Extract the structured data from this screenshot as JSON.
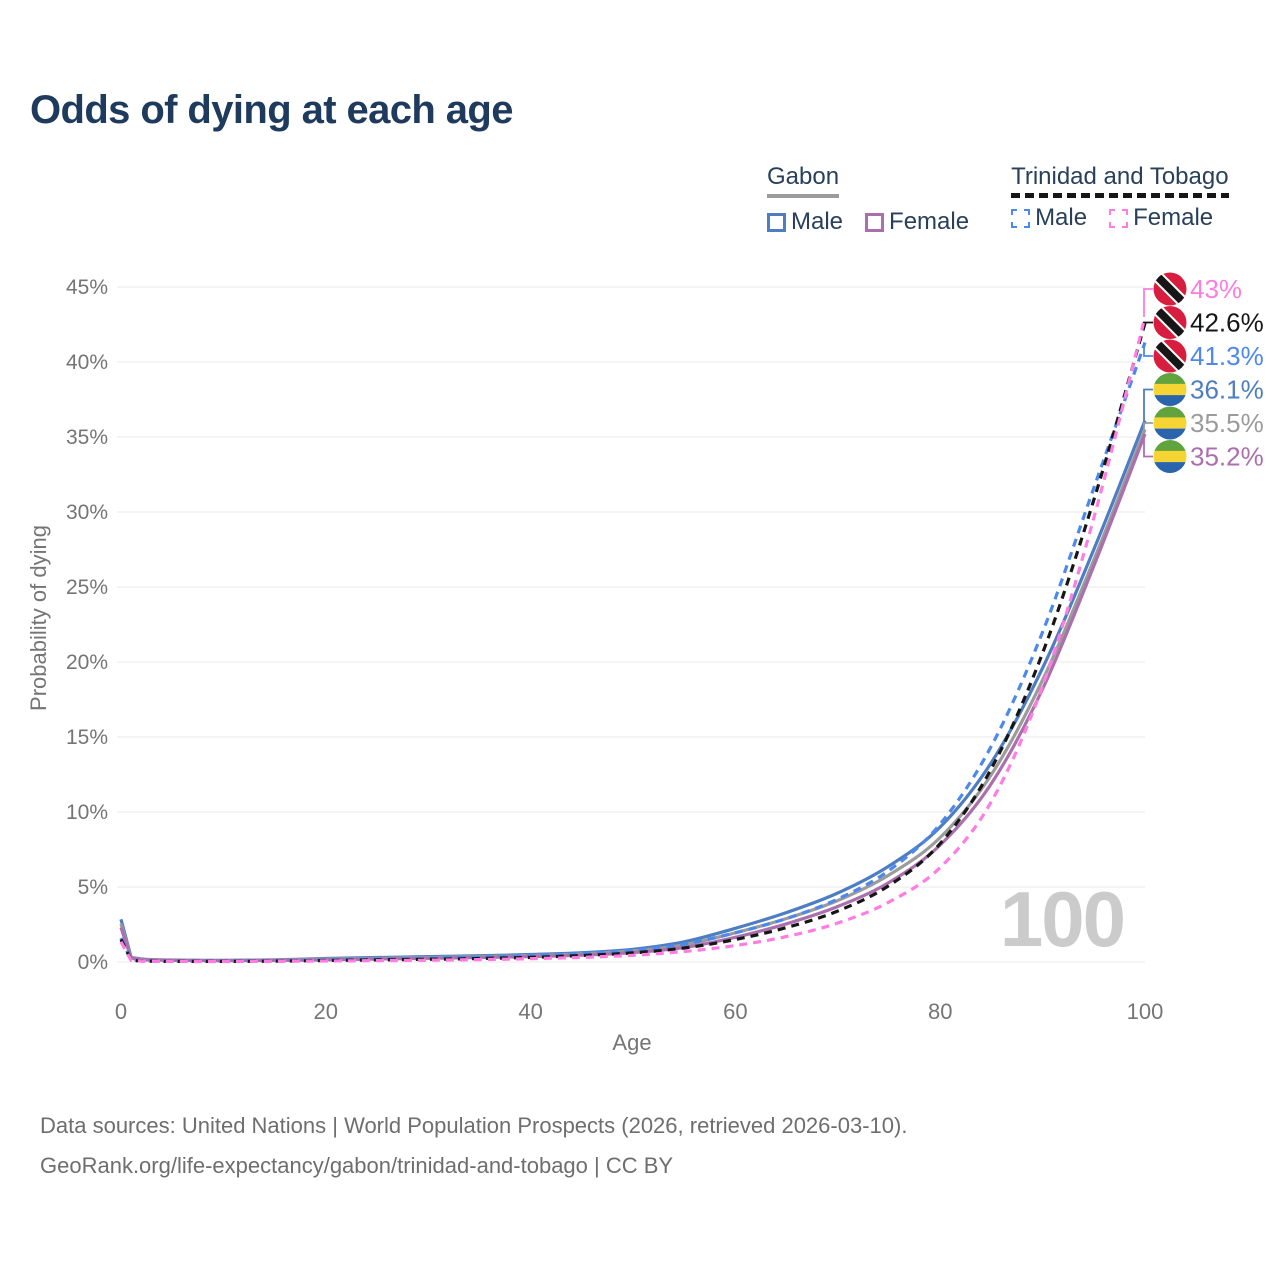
{
  "title": "Odds of dying at each age",
  "watermark": "100",
  "legend": {
    "gabon": {
      "label": "Gabon",
      "male": "Male",
      "female": "Female"
    },
    "trinidad_and_tobago": {
      "label": "Trinidad and Tobago",
      "male": "Male",
      "female": "Female"
    }
  },
  "footer": {
    "line1": "Data sources: United Nations | World Population Prospects (2026, retrieved 2026-03-10).",
    "line2": "GeoRank.org/life-expectancy/gabon/trinidad-and-tobago | CC BY"
  },
  "colors": {
    "title": "#1e3a5c",
    "legend_text": "#29405a",
    "axis_text": "#757575",
    "grid": "#e9e9e9",
    "footer_text": "#6e6e6e",
    "watermark": "#cbcbcb"
  },
  "chart_data": {
    "type": "line",
    "title": "Odds of dying at each age",
    "xlabel": "Age",
    "ylabel": "Probability of dying",
    "xlim": [
      0,
      100
    ],
    "ylim": [
      0,
      45
    ],
    "x_ticks": [
      0,
      20,
      40,
      60,
      80,
      100
    ],
    "y_ticks": [
      0,
      5,
      10,
      15,
      20,
      25,
      30,
      35,
      40,
      45
    ],
    "y_tick_format": "percent",
    "grid": "horizontal",
    "legend_position": "top-right",
    "x": [
      0,
      1,
      2,
      3,
      4,
      5,
      10,
      15,
      20,
      25,
      30,
      35,
      40,
      45,
      50,
      55,
      60,
      65,
      70,
      75,
      80,
      85,
      90,
      95,
      100
    ],
    "series": [
      {
        "name": "Gabon Male",
        "country": "gabon",
        "sex": "male",
        "line": "solid",
        "color": "#4e7dc1",
        "end_label": "36.1%",
        "values": [
          2.85,
          0.3,
          0.2,
          0.16,
          0.14,
          0.13,
          0.11,
          0.15,
          0.23,
          0.3,
          0.36,
          0.42,
          0.5,
          0.62,
          0.85,
          1.35,
          2.25,
          3.3,
          4.6,
          6.4,
          9.0,
          13.3,
          19.6,
          27.5,
          36.1
        ]
      },
      {
        "name": "Gabon Both sexes",
        "country": "gabon",
        "sex": "both",
        "line": "solid",
        "color": "#9b9b9b",
        "end_label": "35.5%",
        "values": [
          2.55,
          0.27,
          0.18,
          0.15,
          0.13,
          0.12,
          0.1,
          0.13,
          0.19,
          0.25,
          0.3,
          0.36,
          0.43,
          0.54,
          0.74,
          1.15,
          1.95,
          2.9,
          4.1,
          5.8,
          8.3,
          12.5,
          18.8,
          26.8,
          35.5
        ]
      },
      {
        "name": "Gabon Female",
        "country": "gabon",
        "sex": "female",
        "line": "solid",
        "color": "#ab6fad",
        "end_label": "35.2%",
        "values": [
          2.3,
          0.24,
          0.16,
          0.13,
          0.12,
          0.11,
          0.09,
          0.11,
          0.15,
          0.2,
          0.25,
          0.3,
          0.37,
          0.46,
          0.63,
          0.97,
          1.65,
          2.55,
          3.7,
          5.3,
          7.8,
          11.9,
          18.2,
          26.4,
          35.2
        ]
      },
      {
        "name": "Trinidad and Tobago Male",
        "country": "trinidad-and-tobago",
        "sex": "male",
        "line": "dashed",
        "color": "#4d88ec",
        "end_label": "41.3%",
        "values": [
          1.6,
          0.12,
          0.08,
          0.06,
          0.05,
          0.05,
          0.05,
          0.08,
          0.14,
          0.19,
          0.25,
          0.32,
          0.42,
          0.57,
          0.8,
          1.2,
          1.95,
          2.9,
          4.2,
          6.1,
          9.2,
          14.4,
          22.0,
          31.6,
          41.3
        ]
      },
      {
        "name": "Trinidad and Tobago Both sexes",
        "country": "trinidad-and-tobago",
        "sex": "both",
        "line": "dashed",
        "color": "#161616",
        "end_label": "42.6%",
        "values": [
          1.5,
          0.11,
          0.07,
          0.06,
          0.05,
          0.04,
          0.04,
          0.06,
          0.1,
          0.14,
          0.18,
          0.23,
          0.31,
          0.43,
          0.61,
          0.93,
          1.5,
          2.3,
          3.4,
          5.1,
          7.9,
          12.9,
          20.6,
          30.8,
          42.6
        ]
      },
      {
        "name": "Trinidad and Tobago Female",
        "country": "trinidad-and-tobago",
        "sex": "female",
        "line": "dashed",
        "color": "#ff7de2",
        "end_label": "43%",
        "values": [
          1.35,
          0.1,
          0.06,
          0.05,
          0.04,
          0.04,
          0.03,
          0.05,
          0.07,
          0.09,
          0.12,
          0.16,
          0.22,
          0.31,
          0.45,
          0.7,
          1.1,
          1.7,
          2.6,
          4.0,
          6.3,
          10.7,
          18.4,
          29.6,
          43.0
        ]
      }
    ]
  }
}
